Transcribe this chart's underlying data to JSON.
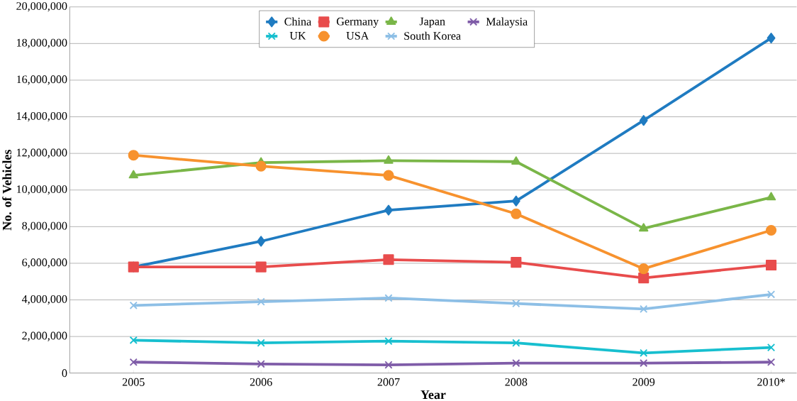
{
  "chart_data": {
    "type": "line",
    "xlabel": "Year",
    "ylabel": "No. of Vehicles",
    "categories": [
      "2005",
      "2006",
      "2007",
      "2008",
      "2009",
      "2010*"
    ],
    "series": [
      {
        "name": "China",
        "color": "#1f7bc1",
        "marker": "diamond",
        "values": [
          5800000,
          7200000,
          8900000,
          9400000,
          13800000,
          18300000
        ]
      },
      {
        "name": "Germany",
        "color": "#e84c4c",
        "marker": "square",
        "values": [
          5800000,
          5800000,
          6200000,
          6050000,
          5200000,
          5900000
        ]
      },
      {
        "name": "Japan",
        "color": "#7ab648",
        "marker": "triangle",
        "values": [
          10800000,
          11500000,
          11600000,
          11550000,
          7900000,
          9600000
        ]
      },
      {
        "name": "Malaysia",
        "color": "#7f5ca8",
        "marker": "cross",
        "values": [
          600000,
          500000,
          450000,
          550000,
          550000,
          600000
        ]
      },
      {
        "name": "UK",
        "color": "#17bfcf",
        "marker": "cross",
        "values": [
          1800000,
          1650000,
          1750000,
          1650000,
          1100000,
          1400000
        ]
      },
      {
        "name": "USA",
        "color": "#f7922e",
        "marker": "circle",
        "values": [
          11900000,
          11300000,
          10800000,
          8700000,
          5700000,
          7800000
        ]
      },
      {
        "name": "South Korea",
        "color": "#8dbfe6",
        "marker": "cross",
        "values": [
          3700000,
          3900000,
          4100000,
          3800000,
          3500000,
          4300000
        ]
      }
    ],
    "ylim": [
      0,
      20000000
    ],
    "yticks": [
      0,
      {
        "value": 2000000,
        "label": "2,000,000"
      },
      {
        "value": 4000000,
        "label": "4,000,000"
      },
      {
        "value": 6000000,
        "label": "6,000,000"
      },
      {
        "value": 8000000,
        "label": "8,000,000"
      },
      {
        "value": 10000000,
        "label": "10,000,000"
      },
      {
        "value": 12000000,
        "label": "12,000,000"
      },
      {
        "value": 14000000,
        "label": "14,000,000"
      },
      {
        "value": 16000000,
        "label": "16,000,000"
      },
      {
        "value": 18000000,
        "label": "18,000,000"
      },
      {
        "value": 20000000,
        "label": "20,000,000"
      }
    ],
    "grid": "y",
    "legend": "top",
    "line_style": "solid"
  }
}
